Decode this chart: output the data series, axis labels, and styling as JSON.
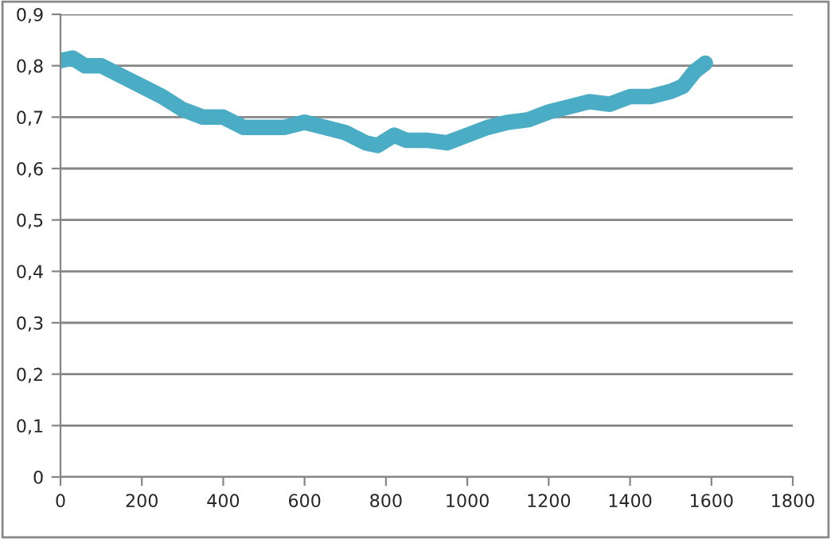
{
  "chart_data": {
    "type": "line",
    "x": [
      0,
      30,
      60,
      100,
      150,
      200,
      250,
      300,
      350,
      400,
      450,
      500,
      550,
      600,
      650,
      700,
      750,
      780,
      820,
      850,
      900,
      950,
      1000,
      1050,
      1100,
      1150,
      1200,
      1250,
      1300,
      1350,
      1400,
      1450,
      1500,
      1530,
      1560,
      1585
    ],
    "series": [
      {
        "color": "#4bacc6",
        "values": [
          0.81,
          0.815,
          0.8,
          0.8,
          0.78,
          0.76,
          0.74,
          0.715,
          0.7,
          0.7,
          0.68,
          0.68,
          0.68,
          0.69,
          0.68,
          0.67,
          0.65,
          0.645,
          0.665,
          0.655,
          0.655,
          0.65,
          0.665,
          0.68,
          0.69,
          0.695,
          0.71,
          0.72,
          0.73,
          0.725,
          0.74,
          0.74,
          0.75,
          0.76,
          0.79,
          0.805
        ]
      }
    ],
    "xlim": [
      0,
      1800
    ],
    "xticks": [
      0,
      200,
      400,
      600,
      800,
      1000,
      1200,
      1400,
      1600,
      1800
    ],
    "ylim": [
      0,
      0.9
    ],
    "yticks": [
      {
        "value": 0,
        "label": "0"
      },
      {
        "value": 0.1,
        "label": "0,1"
      },
      {
        "value": 0.2,
        "label": "0,2"
      },
      {
        "value": 0.3,
        "label": "0,3"
      },
      {
        "value": 0.4,
        "label": "0,4"
      },
      {
        "value": 0.5,
        "label": "0,5"
      },
      {
        "value": 0.6,
        "label": "0,6"
      },
      {
        "value": 0.7,
        "label": "0,7"
      },
      {
        "value": 0.8,
        "label": "0,8"
      },
      {
        "value": 0.9,
        "label": "0,9"
      }
    ],
    "grid": "y",
    "line_style": "solid"
  }
}
